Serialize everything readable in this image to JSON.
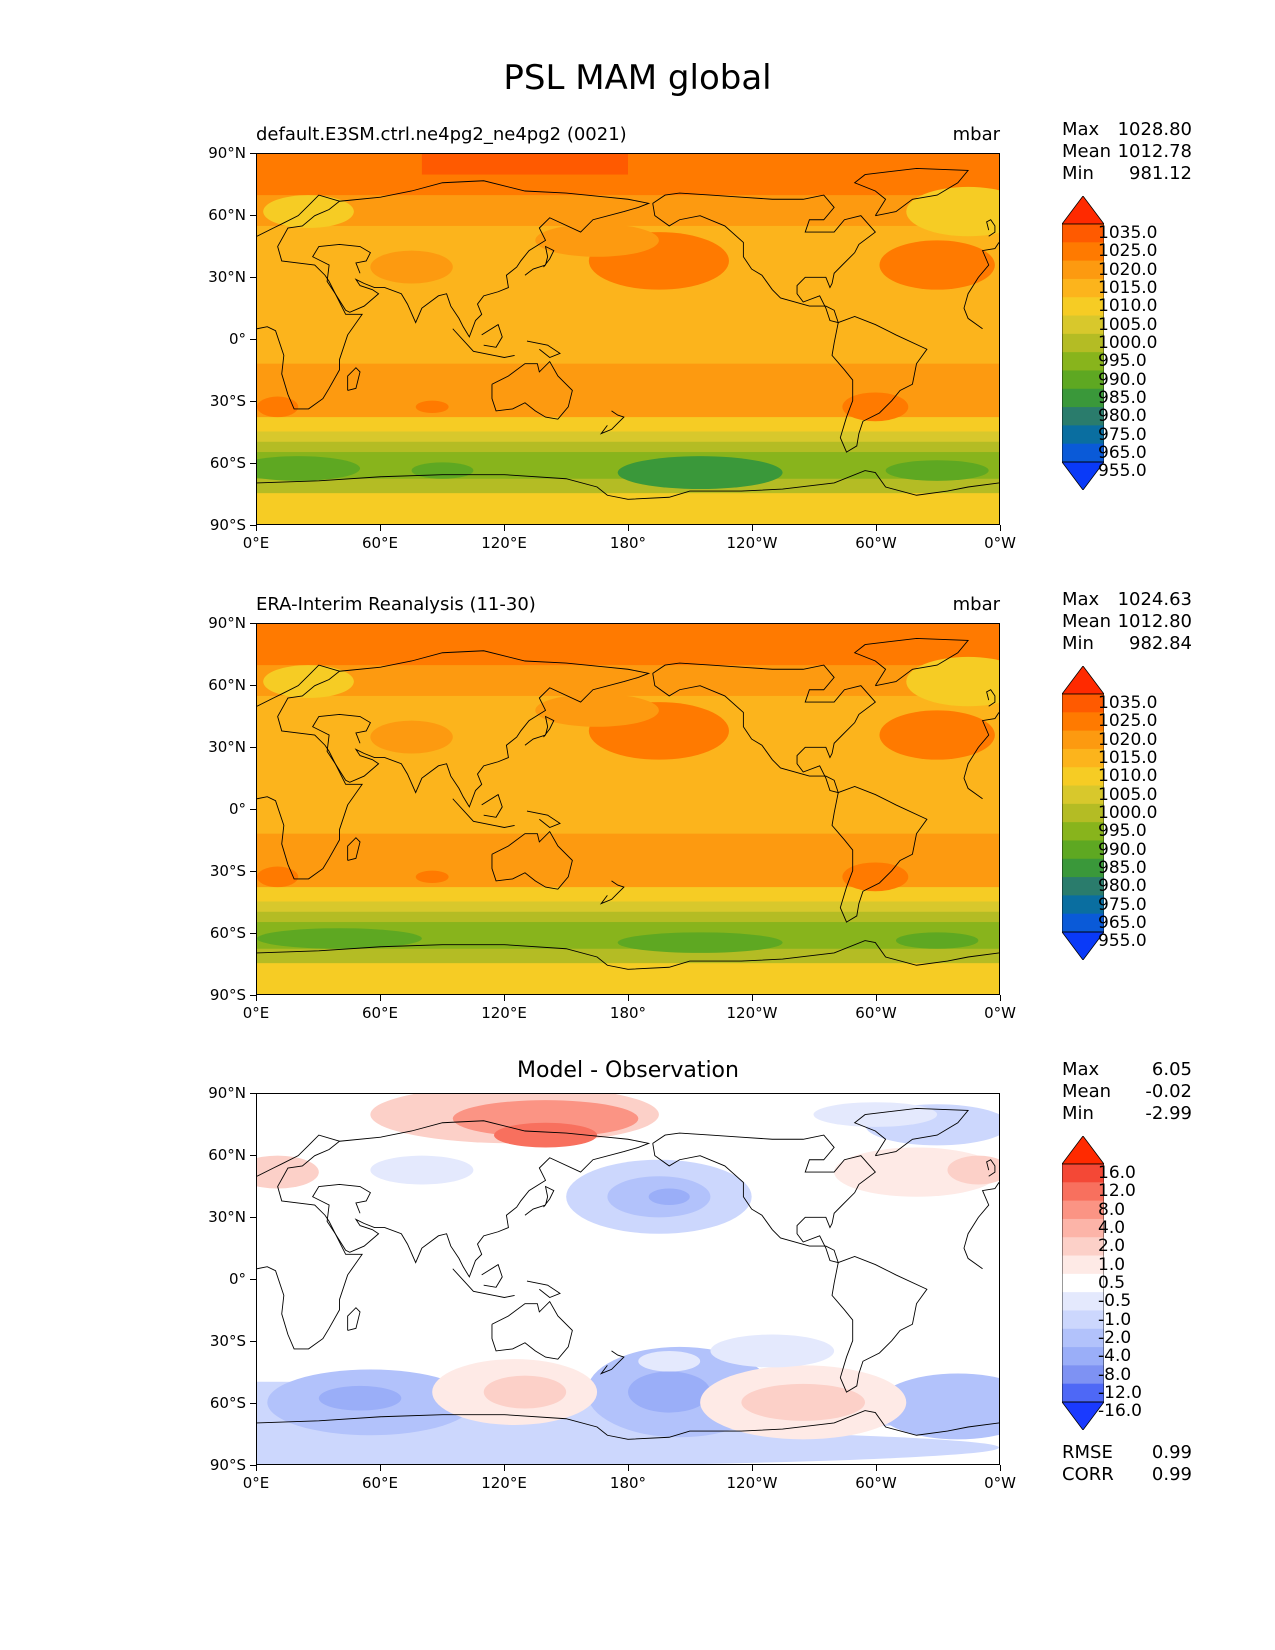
{
  "title": "PSL MAM global",
  "panels": [
    {
      "title_left": "default.E3SM.ctrl.ne4pg2_ne4pg2 (0021)",
      "title_right": "mbar",
      "stats": [
        {
          "label": "Max",
          "value": "1028.80"
        },
        {
          "label": "Mean",
          "value": "1012.78"
        },
        {
          "label": "Min",
          "value": "981.12"
        }
      ],
      "colorbar_labels": [
        "1035.0",
        "1025.0",
        "1020.0",
        "1015.0",
        "1010.0",
        "1005.0",
        "1000.0",
        "995.0",
        "990.0",
        "985.0",
        "980.0",
        "975.0",
        "965.0",
        "955.0"
      ]
    },
    {
      "title_left": "ERA-Interim Reanalysis (11-30)",
      "title_right": "mbar",
      "stats": [
        {
          "label": "Max",
          "value": "1024.63"
        },
        {
          "label": "Mean",
          "value": "1012.80"
        },
        {
          "label": "Min",
          "value": "982.84"
        }
      ],
      "colorbar_labels": [
        "1035.0",
        "1025.0",
        "1020.0",
        "1015.0",
        "1010.0",
        "1005.0",
        "1000.0",
        "995.0",
        "990.0",
        "985.0",
        "980.0",
        "975.0",
        "965.0",
        "955.0"
      ]
    },
    {
      "title_center": "Model - Observation",
      "stats": [
        {
          "label": "Max",
          "value": "6.05"
        },
        {
          "label": "Mean",
          "value": "-0.02"
        },
        {
          "label": "Min",
          "value": "-2.99"
        }
      ],
      "colorbar_labels": [
        "16.0",
        "12.0",
        "8.0",
        "4.0",
        "2.0",
        "1.0",
        "0.5",
        "-0.5",
        "-1.0",
        "-2.0",
        "-4.0",
        "-8.0",
        "-12.0",
        "-16.0"
      ],
      "metrics": [
        {
          "label": "RMSE",
          "value": "0.99"
        },
        {
          "label": "CORR",
          "value": "0.99"
        }
      ]
    }
  ],
  "lat_labels": [
    "90°N",
    "60°N",
    "30°N",
    "0°",
    "30°S",
    "60°S",
    "90°S"
  ],
  "lon_labels": [
    "0°E",
    "60°E",
    "120°E",
    "180°",
    "120°W",
    "60°W",
    "0°W"
  ],
  "colors": {
    "abs_scale": [
      "#ff2a00",
      "#ff5a00",
      "#ff7a00",
      "#fd9a10",
      "#fcb41c",
      "#f6cc24",
      "#d8c82c",
      "#b4bc24",
      "#88b41c",
      "#5ea822",
      "#3a983a",
      "#2a7c6c",
      "#0a6ea0",
      "#0a5ad8",
      "#0a3af8"
    ],
    "diff_scale": [
      "#ff2a00",
      "#f44836",
      "#f8705e",
      "#fb9484",
      "#fcb4a8",
      "#fcd0c8",
      "#feeae6",
      "#ffffff",
      "#e4e9fd",
      "#ccd7fd",
      "#b2c2fb",
      "#9aaef8",
      "#7e92f3",
      "#4e68f6",
      "#1a3aff"
    ]
  }
}
